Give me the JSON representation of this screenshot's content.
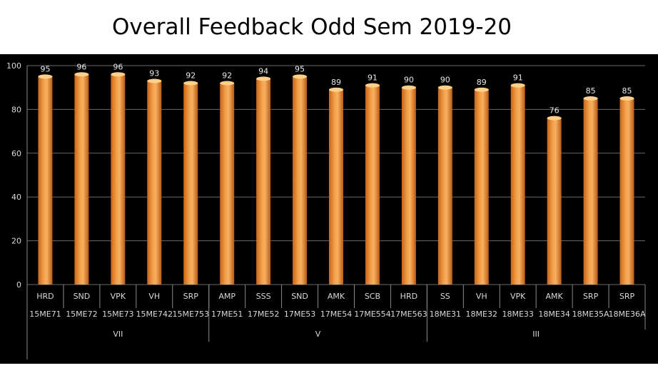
{
  "chart_data": {
    "type": "bar",
    "title": "Overall Feedback Odd Sem 2019-20",
    "categories": [
      {
        "faculty": "HRD",
        "course": "15ME71",
        "sem": "VII"
      },
      {
        "faculty": "SND",
        "course": "15ME72",
        "sem": "VII"
      },
      {
        "faculty": "VPK",
        "course": "15ME73",
        "sem": "VII"
      },
      {
        "faculty": "VH",
        "course": "15ME742",
        "sem": "VII"
      },
      {
        "faculty": "SRP",
        "course": "15ME753",
        "sem": "VII"
      },
      {
        "faculty": "AMP",
        "course": "17ME51",
        "sem": "V"
      },
      {
        "faculty": "SSS",
        "course": "17ME52",
        "sem": "V"
      },
      {
        "faculty": "SND",
        "course": "17ME53",
        "sem": "V"
      },
      {
        "faculty": "AMK",
        "course": "17ME54",
        "sem": "V"
      },
      {
        "faculty": "SCB",
        "course": "17ME554",
        "sem": "V"
      },
      {
        "faculty": "HRD",
        "course": "17ME563",
        "sem": "V"
      },
      {
        "faculty": "SS",
        "course": "18ME31",
        "sem": "III"
      },
      {
        "faculty": "VH",
        "course": "18ME32",
        "sem": "III"
      },
      {
        "faculty": "VPK",
        "course": "18ME33",
        "sem": "III"
      },
      {
        "faculty": "AMK",
        "course": "18ME34",
        "sem": "III"
      },
      {
        "faculty": "SRP",
        "course": "18ME35A",
        "sem": "III"
      },
      {
        "faculty": "SRP",
        "course": "18ME36A",
        "sem": "III"
      }
    ],
    "groups": [
      {
        "label": "VII",
        "count": 5
      },
      {
        "label": "V",
        "count": 6
      },
      {
        "label": "III",
        "count": 6
      }
    ],
    "values": [
      95,
      96,
      96,
      93,
      92,
      92,
      94,
      95,
      89,
      91,
      90,
      90,
      89,
      91,
      76,
      85,
      85
    ],
    "ylim": [
      0,
      100
    ],
    "yticks": [
      0,
      20,
      40,
      60,
      80,
      100
    ],
    "grid": true,
    "background": "#000000",
    "bar_color": "#f0922c",
    "bar_highlight": "#ffd08a",
    "xlabel": "",
    "ylabel": ""
  }
}
